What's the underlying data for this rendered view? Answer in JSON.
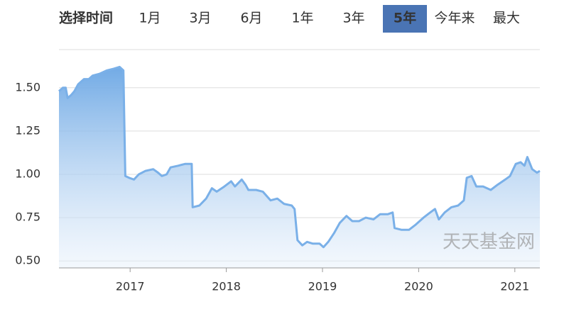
{
  "range_selector": {
    "label": "选择时间",
    "options": [
      "1月",
      "3月",
      "6月",
      "1年",
      "3年",
      "5年",
      "今年来",
      "最大"
    ],
    "selected": 5
  },
  "chart_data": {
    "type": "area",
    "watermark": "天天基金网",
    "color": "#7ab0e8",
    "x": [
      2016.26,
      2016.3,
      2016.33,
      2016.35,
      2016.39,
      2016.42,
      2016.46,
      2016.52,
      2016.57,
      2016.61,
      2016.68,
      2016.76,
      2016.83,
      2016.89,
      2016.93,
      2016.95,
      2016.99,
      2017.04,
      2017.09,
      2017.16,
      2017.24,
      2017.29,
      2017.33,
      2017.38,
      2017.42,
      2017.5,
      2017.57,
      2017.64,
      2017.65,
      2017.72,
      2017.79,
      2017.85,
      2017.9,
      2017.98,
      2018.05,
      2018.09,
      2018.16,
      2018.2,
      2018.23,
      2018.31,
      2018.38,
      2018.46,
      2018.53,
      2018.6,
      2018.68,
      2018.71,
      2018.74,
      2018.79,
      2018.84,
      2018.9,
      2018.97,
      2019.01,
      2019.06,
      2019.12,
      2019.18,
      2019.25,
      2019.31,
      2019.38,
      2019.45,
      2019.53,
      2019.6,
      2019.68,
      2019.73,
      2019.75,
      2019.82,
      2019.9,
      2019.97,
      2020.05,
      2020.12,
      2020.17,
      2020.21,
      2020.27,
      2020.34,
      2020.41,
      2020.47,
      2020.5,
      2020.55,
      2020.6,
      2020.67,
      2020.75,
      2020.82,
      2020.9,
      2020.95,
      2021.01,
      2021.06,
      2021.1,
      2021.13,
      2021.18,
      2021.23,
      2021.26
    ],
    "values": [
      1.48,
      1.5,
      1.5,
      1.44,
      1.46,
      1.48,
      1.52,
      1.55,
      1.55,
      1.57,
      1.58,
      1.6,
      1.61,
      1.62,
      1.6,
      0.99,
      0.98,
      0.97,
      1.0,
      1.02,
      1.03,
      1.01,
      0.99,
      1.0,
      1.04,
      1.05,
      1.06,
      1.06,
      0.81,
      0.82,
      0.86,
      0.92,
      0.9,
      0.93,
      0.96,
      0.93,
      0.97,
      0.94,
      0.91,
      0.91,
      0.9,
      0.85,
      0.86,
      0.83,
      0.82,
      0.8,
      0.62,
      0.59,
      0.61,
      0.6,
      0.6,
      0.58,
      0.61,
      0.66,
      0.72,
      0.76,
      0.73,
      0.73,
      0.75,
      0.74,
      0.77,
      0.77,
      0.78,
      0.69,
      0.68,
      0.68,
      0.71,
      0.75,
      0.78,
      0.8,
      0.74,
      0.78,
      0.81,
      0.82,
      0.85,
      0.98,
      0.99,
      0.93,
      0.93,
      0.91,
      0.94,
      0.97,
      0.99,
      1.06,
      1.07,
      1.05,
      1.1,
      1.03,
      1.01,
      1.02
    ],
    "xlim": [
      2016.26,
      2021.26
    ],
    "xticks": [
      2017,
      2018,
      2019,
      2020,
      2021
    ],
    "ylim": [
      0.46,
      1.72
    ],
    "yticks": [
      {
        "value": 0.5,
        "label": "0.50"
      },
      {
        "value": 0.75,
        "label": "0.75"
      },
      {
        "value": 1.0,
        "label": "1.00"
      },
      {
        "value": 1.25,
        "label": "1.25"
      },
      {
        "value": 1.5,
        "label": "1.50"
      }
    ],
    "grid": true
  }
}
